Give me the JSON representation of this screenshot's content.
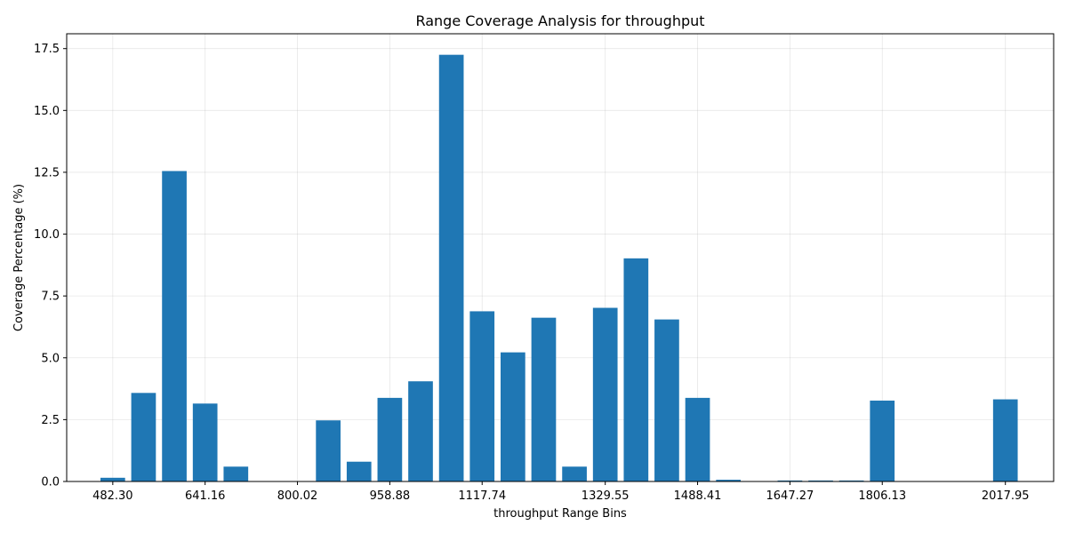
{
  "chart_data": {
    "type": "bar",
    "title": "Range Coverage Analysis for throughput",
    "xlabel": "throughput Range Bins",
    "ylabel": "Coverage Percentage (%)",
    "bar_color": "#1f77b4",
    "grid": true,
    "xlim": [
      403,
      2101
    ],
    "ylim": [
      0,
      18.1
    ],
    "x_ticks": [
      {
        "value": 482.3,
        "label": "482.30"
      },
      {
        "value": 641.16,
        "label": "641.16"
      },
      {
        "value": 800.02,
        "label": "800.02"
      },
      {
        "value": 958.88,
        "label": "958.88"
      },
      {
        "value": 1117.74,
        "label": "1117.74"
      },
      {
        "value": 1329.55,
        "label": "1329.55"
      },
      {
        "value": 1488.41,
        "label": "1488.41"
      },
      {
        "value": 1647.27,
        "label": "1647.27"
      },
      {
        "value": 1806.13,
        "label": "1806.13"
      },
      {
        "value": 2017.95,
        "label": "2017.95"
      }
    ],
    "y_ticks": [
      {
        "value": 0.0,
        "label": "0.0"
      },
      {
        "value": 2.5,
        "label": "2.5"
      },
      {
        "value": 5.0,
        "label": "5.0"
      },
      {
        "value": 7.5,
        "label": "7.5"
      },
      {
        "value": 10.0,
        "label": "10.0"
      },
      {
        "value": 12.5,
        "label": "12.5"
      },
      {
        "value": 15.0,
        "label": "15.0"
      },
      {
        "value": 17.5,
        "label": "17.5"
      }
    ],
    "bin_width": 42.36,
    "x": [
      482.3,
      535.25,
      588.21,
      641.16,
      694.11,
      747.07,
      800.02,
      852.97,
      905.93,
      958.88,
      1011.83,
      1064.79,
      1117.74,
      1170.69,
      1223.65,
      1276.6,
      1329.55,
      1382.51,
      1435.46,
      1488.41,
      1541.37,
      1594.32,
      1647.27,
      1700.23,
      1753.18,
      1806.13,
      1859.09,
      1912.04,
      1964.99,
      2017.95
    ],
    "values": [
      0.15,
      3.58,
      12.55,
      3.15,
      0.6,
      0.0,
      0.0,
      2.47,
      0.8,
      3.38,
      4.05,
      17.25,
      6.88,
      5.22,
      6.62,
      0.6,
      7.02,
      9.02,
      6.55,
      3.38,
      0.07,
      0.0,
      0.04,
      0.04,
      0.04,
      3.27,
      0.0,
      0.0,
      0.0,
      3.32
    ]
  }
}
